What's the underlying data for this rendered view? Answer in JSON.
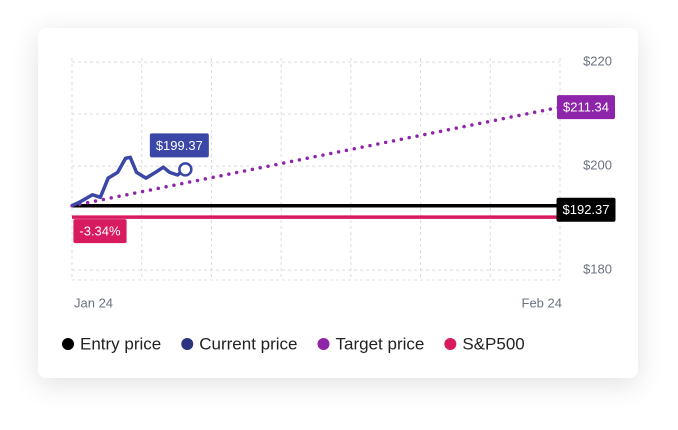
{
  "chart_data": {
    "type": "line",
    "xlim": [
      0,
      31
    ],
    "xticks": [
      {
        "value": 0,
        "label": "Jan 24"
      },
      {
        "value": 31,
        "label": "Feb 24"
      }
    ],
    "ylim": [
      178.1,
      220.8
    ],
    "yticks": [
      {
        "value": 220,
        "label": "$220"
      },
      {
        "value": 200,
        "label": "$200"
      },
      {
        "value": 180,
        "label": "$180"
      }
    ],
    "minor_yticks": [
      210,
      190
    ],
    "grid": true,
    "series": [
      {
        "name": "Entry price",
        "color": "#000000",
        "style": "solid",
        "x": [
          0,
          31
        ],
        "values": [
          192.37,
          192.37
        ],
        "value_labels": [
          null,
          "$192.37"
        ]
      },
      {
        "name": "Current price",
        "color": "#3b47a6",
        "style": "solid",
        "x": [
          0,
          0.5,
          1.3,
          1.8,
          2.3,
          2.9,
          3.4,
          3.7,
          4.1,
          4.7,
          5.3,
          5.8,
          6.2,
          6.7,
          7.2
        ],
        "values": [
          192.4,
          193.1,
          194.5,
          194.0,
          197.7,
          198.8,
          201.5,
          201.7,
          198.8,
          197.7,
          198.8,
          199.8,
          198.8,
          198.3,
          199.37
        ],
        "value_labels": [
          null,
          null,
          null,
          null,
          null,
          null,
          null,
          null,
          null,
          null,
          null,
          null,
          null,
          null,
          "$199.37"
        ]
      },
      {
        "name": "Target price",
        "color": "#8e24aa",
        "style": "dotted",
        "x": [
          0,
          31
        ],
        "values": [
          192.37,
          211.34
        ],
        "value_labels": [
          null,
          "$211.34"
        ]
      },
      {
        "name": "S&P500",
        "color": "#d81b60",
        "style": "solid",
        "x": [
          0,
          31
        ],
        "values": [
          190.2,
          190.2
        ],
        "annotation": "-3.34%"
      }
    ]
  }
}
